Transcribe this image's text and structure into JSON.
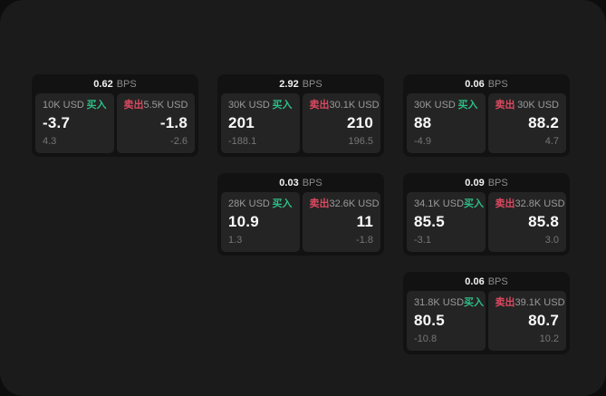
{
  "theme": {
    "buy_color": "#2ebd85",
    "sell_color": "#dc4960",
    "screen_bg": "#1b1b1b",
    "card_bg": "#121212",
    "panel_bg": "#242424"
  },
  "labels": {
    "bps_unit": "BPS",
    "buy": "买入",
    "sell": "卖出"
  },
  "cards": [
    {
      "bps": "0.62",
      "buy": {
        "size": "10K USD",
        "price": "-3.7",
        "delta": "4.3"
      },
      "sell": {
        "size": "5.5K USD",
        "price": "-1.8",
        "delta": "-2.6"
      }
    },
    {
      "bps": "2.92",
      "buy": {
        "size": "30K USD",
        "price": "201",
        "delta": "-188.1"
      },
      "sell": {
        "size": "30.1K USD",
        "price": "210",
        "delta": "196.5"
      }
    },
    {
      "bps": "0.06",
      "buy": {
        "size": "30K USD",
        "price": "88",
        "delta": "-4.9"
      },
      "sell": {
        "size": "30K USD",
        "price": "88.2",
        "delta": "4.7"
      }
    },
    {
      "bps": "0.03",
      "buy": {
        "size": "28K USD",
        "price": "10.9",
        "delta": "1.3"
      },
      "sell": {
        "size": "32.6K USD",
        "price": "11",
        "delta": "-1.8"
      }
    },
    {
      "bps": "0.09",
      "buy": {
        "size": "34.1K USD",
        "price": "85.5",
        "delta": "-3.1"
      },
      "sell": {
        "size": "32.8K USD",
        "price": "85.8",
        "delta": "3.0"
      }
    },
    {
      "bps": "0.06",
      "buy": {
        "size": "31.8K USD",
        "price": "80.5",
        "delta": "-10.8"
      },
      "sell": {
        "size": "39.1K USD",
        "price": "80.7",
        "delta": "10.2"
      }
    }
  ]
}
